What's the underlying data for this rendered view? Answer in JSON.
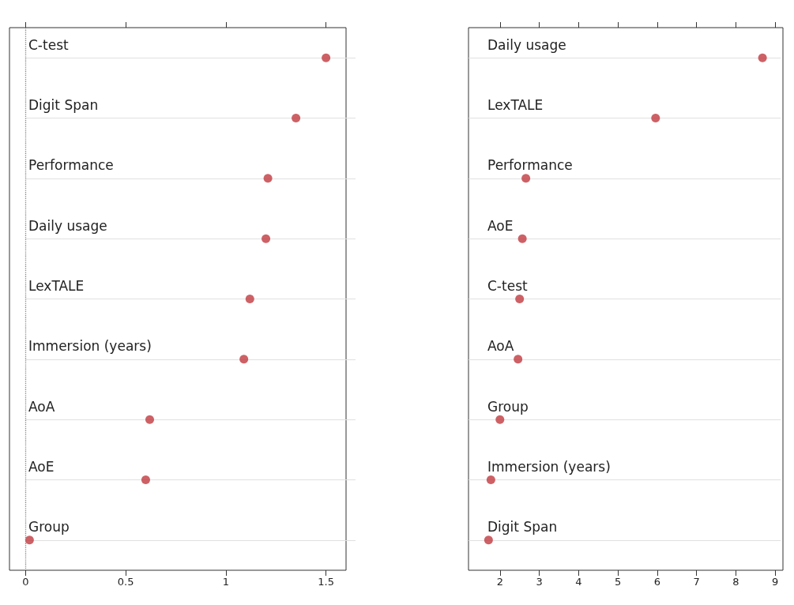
{
  "chart_data": [
    {
      "type": "scatter",
      "orientation": "horizontal",
      "categories": [
        "C-test",
        "Digit Span",
        "Performance",
        "Daily usage",
        "LexTALE",
        "Immersion (years)",
        "AoA",
        "AoE",
        "Group"
      ],
      "series": [
        {
          "color": "#c0393f",
          "values": [
            1.5,
            1.35,
            1.21,
            1.2,
            1.12,
            1.09,
            0.62,
            0.6,
            0.02
          ]
        }
      ],
      "xlim": [
        -0.08,
        1.6
      ],
      "xticks": [
        0,
        0.5,
        1,
        1.5
      ],
      "grid": "y",
      "marker": "circle",
      "ref_lines": [
        {
          "axis": "x",
          "value": 0,
          "color": "#888888",
          "line_style": "dotted"
        }
      ]
    },
    {
      "type": "scatter",
      "orientation": "horizontal",
      "categories": [
        "Daily usage",
        "LexTALE",
        "Performance",
        "AoE",
        "C-test",
        "AoA",
        "Group",
        "Immersion (years)",
        "Digit Span"
      ],
      "series": [
        {
          "color": "#c0393f",
          "values": [
            8.68,
            5.96,
            2.66,
            2.57,
            2.5,
            2.46,
            2.0,
            1.77,
            1.71
          ]
        }
      ],
      "xlim": [
        1.2,
        9.2
      ],
      "xticks": [
        2,
        3,
        4,
        5,
        6,
        7,
        8,
        9
      ],
      "grid": "y",
      "marker": "circle"
    }
  ]
}
